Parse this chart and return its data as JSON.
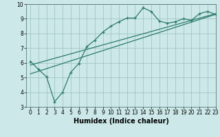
{
  "xlabel": "Humidex (Indice chaleur)",
  "bg_color": "#cce8e8",
  "line_color": "#2a7a6a",
  "grid_color": "#9bbfbf",
  "xlim": [
    -0.5,
    23
  ],
  "ylim": [
    3,
    10
  ],
  "xticks": [
    0,
    1,
    2,
    3,
    4,
    5,
    6,
    7,
    8,
    9,
    10,
    11,
    12,
    13,
    14,
    15,
    16,
    17,
    18,
    19,
    20,
    21,
    22,
    23
  ],
  "yticks": [
    3,
    4,
    5,
    6,
    7,
    8,
    9,
    10
  ],
  "line1_x": [
    0,
    1,
    2,
    3,
    4,
    5,
    6,
    7,
    8,
    9,
    10,
    11,
    12,
    13,
    14,
    15,
    16,
    17,
    18,
    19,
    20,
    21,
    22,
    23
  ],
  "line1_y": [
    6.1,
    5.55,
    5.05,
    3.35,
    4.0,
    5.35,
    5.95,
    7.1,
    7.55,
    8.1,
    8.5,
    8.8,
    9.05,
    9.05,
    9.75,
    9.5,
    8.85,
    8.7,
    8.8,
    9.0,
    8.9,
    9.35,
    9.5,
    9.3
  ],
  "line2_x": [
    0,
    23
  ],
  "line2_y": [
    5.85,
    9.35
  ],
  "line3_x": [
    0,
    23
  ],
  "line3_y": [
    5.25,
    9.3
  ],
  "tick_fontsize": 5.5,
  "xlabel_fontsize": 7
}
